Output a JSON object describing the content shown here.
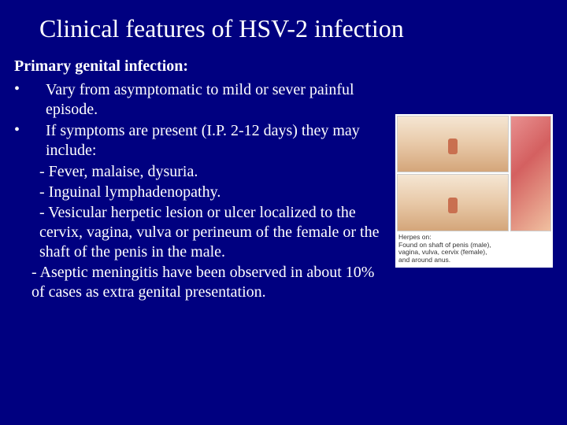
{
  "title": "Clinical features of HSV-2 infection",
  "subheading": "Primary genital infection:",
  "bullets": [
    {
      "marker": "•",
      "text": "Vary from asymptomatic to mild or sever painful episode."
    },
    {
      "marker": "•",
      "text": "If symptoms are present (I.P. 2-12 days) they may include:"
    }
  ],
  "subitems": [
    "- Fever, malaise, dysuria.",
    "- Inguinal lymphadenopathy.",
    "- Vesicular herpetic lesion or ulcer localized to the cervix, vagina, vulva or perineum of the female or the shaft of the penis in the male."
  ],
  "subitem_offset": "- Aseptic meningitis have been observed in about 10% of cases as extra genital presentation.",
  "figure": {
    "caption_l1": "Herpes on:",
    "caption_l2": "Found on shaft of penis (male),",
    "caption_l3": "vagina, vulva, cervix (female),",
    "caption_l4": "and around anus."
  },
  "colors": {
    "background": "#000080",
    "text": "#ffffff",
    "figure_bg": "#ffffff"
  }
}
